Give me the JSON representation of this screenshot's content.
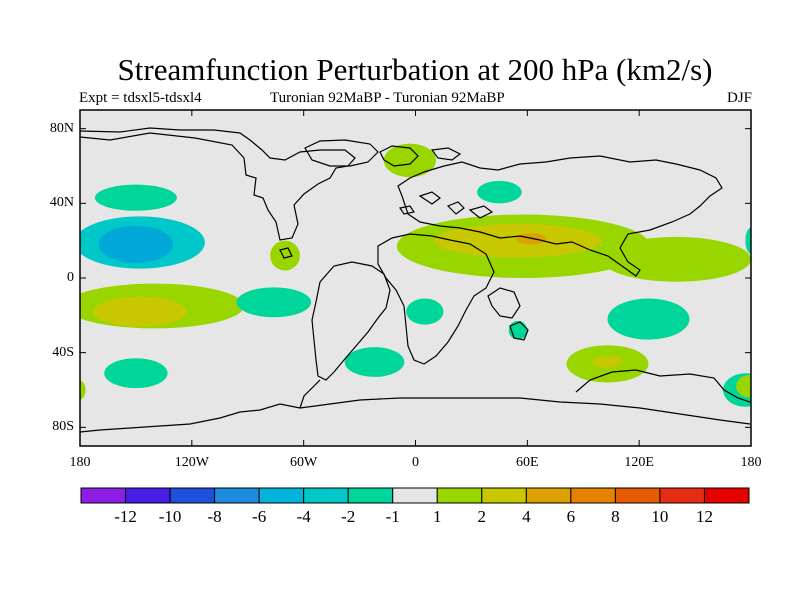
{
  "title": "Streamfunction Perturbation at 200 hPa (km2/s)",
  "subtitle_left": "Expt = tdsxl5-tdsxl4",
  "subtitle_center": "Turonian  92MaBP - Turonian  92MaBP",
  "subtitle_right": "DJF",
  "map": {
    "lon_range": [
      -180,
      180
    ],
    "lat_range": [
      -90,
      90
    ],
    "background_color": "#e6e6e6",
    "y_ticks": [
      {
        "lat": 80,
        "label": "80N"
      },
      {
        "lat": 40,
        "label": "40N"
      },
      {
        "lat": 0,
        "label": "0"
      },
      {
        "lat": -40,
        "label": "40S"
      },
      {
        "lat": -80,
        "label": "80S"
      }
    ],
    "x_ticks": [
      {
        "lon": -180,
        "label": "180"
      },
      {
        "lon": -120,
        "label": "120W"
      },
      {
        "lon": -60,
        "label": "60W"
      },
      {
        "lon": 0,
        "label": "0"
      },
      {
        "lon": 60,
        "label": "60E"
      },
      {
        "lon": 120,
        "label": "120E"
      },
      {
        "lon": 180,
        "label": "180"
      }
    ],
    "contour_regions": [
      {
        "id": "n-pac-neg",
        "level": "-2",
        "color": "#00d69a",
        "lon": -150,
        "lat": 43,
        "rlon": 22,
        "rlat": 7
      },
      {
        "id": "e-pac-neg-outer",
        "level": "-4",
        "color": "#00c8c8",
        "lon": -148,
        "lat": 19,
        "rlon": 35,
        "rlat": 14
      },
      {
        "id": "e-pac-neg-inner",
        "level": "-6",
        "color": "#00a8d8",
        "lon": -150,
        "lat": 18,
        "rlon": 20,
        "rlat": 10
      },
      {
        "id": "s-pac-pos-outer",
        "level": "1",
        "color": "#99d600",
        "lon": -140,
        "lat": -15,
        "rlon": 48,
        "rlat": 12
      },
      {
        "id": "s-pac-pos-inner",
        "level": "2",
        "color": "#c8c800",
        "lon": -148,
        "lat": -18,
        "rlon": 25,
        "rlat": 8
      },
      {
        "id": "s-am-neg",
        "level": "-2",
        "color": "#00d69a",
        "lon": -76,
        "lat": -13,
        "rlon": 20,
        "rlat": 8
      },
      {
        "id": "s-pac-neg",
        "level": "-2",
        "color": "#00d69a",
        "lon": -150,
        "lat": -51,
        "rlon": 17,
        "rlat": 8
      },
      {
        "id": "s-atl-neg",
        "level": "-2",
        "color": "#00d69a",
        "lon": -22,
        "lat": -45,
        "rlon": 16,
        "rlat": 8
      },
      {
        "id": "s-atl-neg-2",
        "level": "-2",
        "color": "#00d69a",
        "lon": 5,
        "lat": -18,
        "rlon": 10,
        "rlat": 7
      },
      {
        "id": "caribbean-pos",
        "level": "1",
        "color": "#99d600",
        "lon": -70,
        "lat": 12,
        "rlon": 8,
        "rlat": 8
      },
      {
        "id": "arctic-pos",
        "level": "1",
        "color": "#99d600",
        "lon": -3,
        "lat": 63,
        "rlon": 14,
        "rlat": 9
      },
      {
        "id": "tethys-pos-outer",
        "level": "1",
        "color": "#99d600",
        "lon": 58,
        "lat": 17,
        "rlon": 68,
        "rlat": 17
      },
      {
        "id": "tethys-pos-inner",
        "level": "2",
        "color": "#c8c800",
        "lon": 55,
        "lat": 20,
        "rlon": 45,
        "rlat": 9
      },
      {
        "id": "tethys-pos-core",
        "level": "4",
        "color": "#dca000",
        "lon": 62,
        "lat": 21,
        "rlon": 8,
        "rlat": 3
      },
      {
        "id": "w-pac-pos",
        "level": "1",
        "color": "#99d600",
        "lon": 140,
        "lat": 10,
        "rlon": 40,
        "rlat": 12
      },
      {
        "id": "asia-neg",
        "level": "-2",
        "color": "#00d69a",
        "lon": 45,
        "lat": 46,
        "rlon": 12,
        "rlat": 6
      },
      {
        "id": "indian-neg",
        "level": "-2",
        "color": "#00d69a",
        "lon": 125,
        "lat": -22,
        "rlon": 22,
        "rlat": 11
      },
      {
        "id": "madagascar-neg",
        "level": "-2",
        "color": "#00d69a",
        "lon": 55,
        "lat": -28,
        "rlon": 5,
        "rlat": 5
      },
      {
        "id": "s-indian-pos",
        "level": "1",
        "color": "#99d600",
        "lon": 103,
        "lat": -46,
        "rlon": 22,
        "rlat": 10
      },
      {
        "id": "s-indian-pos-inner",
        "level": "2",
        "color": "#c8c800",
        "lon": 103,
        "lat": -45,
        "rlon": 8,
        "rlat": 3
      },
      {
        "id": "se-pac-neg",
        "level": "-2",
        "color": "#00d69a",
        "lon": 177,
        "lat": -60,
        "rlon": 12,
        "rlat": 9
      },
      {
        "id": "se-pac-pos",
        "level": "1",
        "color": "#99d600",
        "lon": 179,
        "lat": -58,
        "rlon": 7,
        "rlat": 6
      },
      {
        "id": "w-edge-pos",
        "level": "1",
        "color": "#99d600",
        "lon": -180,
        "lat": -60,
        "rlon": 3,
        "rlat": 5
      },
      {
        "id": "e-edge-neg",
        "level": "-2",
        "color": "#00d69a",
        "lon": 180,
        "lat": 20,
        "rlon": 3,
        "rlat": 7
      }
    ]
  },
  "colorbar": {
    "colors": [
      "#8c1ee6",
      "#461ee6",
      "#1e50dc",
      "#1e8cdc",
      "#00b4dc",
      "#00c8c8",
      "#00d69a",
      "#e6e6e6",
      "#99d600",
      "#c8c800",
      "#dca000",
      "#e68200",
      "#e65a00",
      "#e62d14",
      "#e60000"
    ],
    "labels": [
      "-12",
      "-10",
      "-8",
      "-6",
      "-4",
      "-2",
      "-1",
      "1",
      "2",
      "4",
      "6",
      "8",
      "10",
      "12"
    ]
  }
}
